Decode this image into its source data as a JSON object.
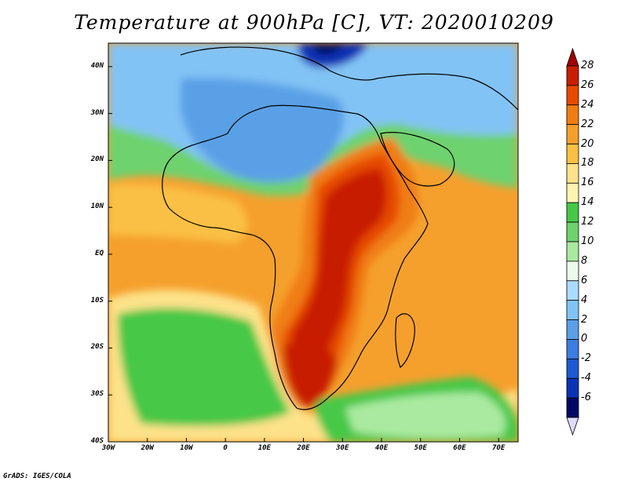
{
  "title": "Temperature at 900hPa [C], VT: 2020010209",
  "credit": "GrADS: IGES/COLA",
  "map": {
    "projection": "lat-lon",
    "lon_range": [
      -30,
      75
    ],
    "lat_range": [
      -40,
      45
    ],
    "lat_ticks": [
      {
        "value": 40,
        "label": "40N"
      },
      {
        "value": 30,
        "label": "30N"
      },
      {
        "value": 20,
        "label": "20N"
      },
      {
        "value": 10,
        "label": "10N"
      },
      {
        "value": 0,
        "label": "EQ"
      },
      {
        "value": -10,
        "label": "10S"
      },
      {
        "value": -20,
        "label": "20S"
      },
      {
        "value": -30,
        "label": "30S"
      },
      {
        "value": -40,
        "label": "40S"
      }
    ],
    "lon_ticks": [
      {
        "value": -30,
        "label": "30W"
      },
      {
        "value": -20,
        "label": "20W"
      },
      {
        "value": -10,
        "label": "10W"
      },
      {
        "value": 0,
        "label": "0"
      },
      {
        "value": 10,
        "label": "10E"
      },
      {
        "value": 20,
        "label": "20E"
      },
      {
        "value": 30,
        "label": "30E"
      },
      {
        "value": 40,
        "label": "40E"
      },
      {
        "value": 50,
        "label": "50E"
      },
      {
        "value": 60,
        "label": "60E"
      },
      {
        "value": 70,
        "label": "70E"
      }
    ]
  },
  "colorbar": {
    "labels": [
      "28",
      "26",
      "24",
      "22",
      "20",
      "18",
      "16",
      "14",
      "12",
      "10",
      "8",
      "6",
      "4",
      "2",
      "0",
      "-2",
      "-4",
      "-6"
    ],
    "colors": [
      "#c81e00",
      "#e64a00",
      "#f07d14",
      "#f5a02d",
      "#fac044",
      "#fde28a",
      "#fff5b0",
      "#46c846",
      "#6ed26e",
      "#aaeaa0",
      "#ebfaeb",
      "#aadcff",
      "#82c3f5",
      "#5aa0e6",
      "#3c7de1",
      "#1e5ad2",
      "#0a32b4",
      "#000a64"
    ],
    "top_arrow_color": "#a00000",
    "bottom_arrow_color": "#dcdcff"
  },
  "field_colors": {
    "ocean_north": "#82c3f5",
    "sahara": "#5aa0e6",
    "atlantic_trop": "#f5a02d",
    "south_atlantic": "#46c846",
    "indian_ocean": "#f5a02d",
    "hot_core": "#c81e00",
    "hot_mid": "#e64a00",
    "hot_outer": "#f07d14",
    "med_cold": "#0a32b4"
  }
}
